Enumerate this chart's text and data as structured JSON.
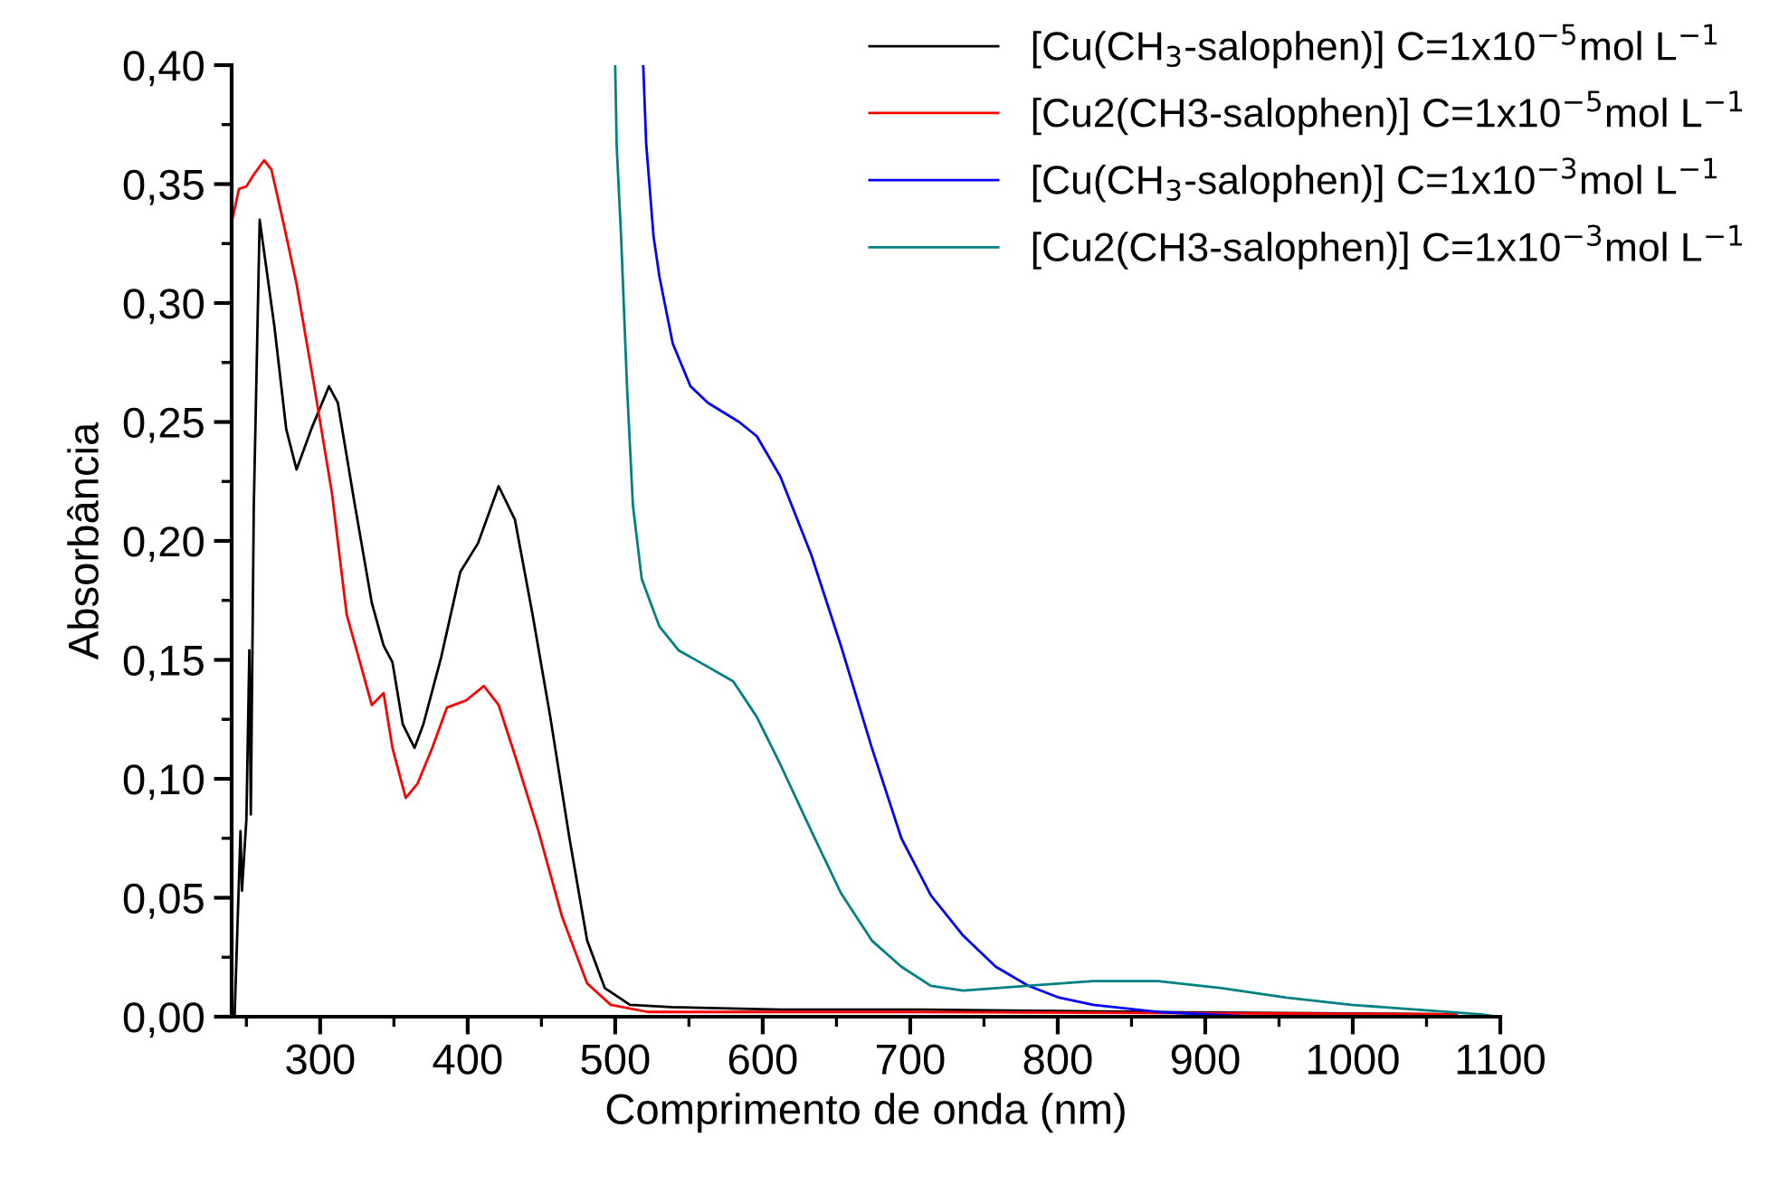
{
  "chart_data": {
    "type": "line",
    "xlabel": "Comprimento de onda (nm)",
    "ylabel": "Absorbância",
    "xlim": [
      240,
      1100
    ],
    "xticks": [
      300,
      400,
      500,
      600,
      700,
      800,
      900,
      1000,
      1100
    ],
    "ylim": [
      0,
      0.4
    ],
    "yticks": [
      {
        "value": 0,
        "label": "0,00"
      },
      {
        "value": 0.05,
        "label": "0,05"
      },
      {
        "value": 0.1,
        "label": "0,10"
      },
      {
        "value": 0.15,
        "label": "0,15"
      },
      {
        "value": 0.2,
        "label": "0,20"
      },
      {
        "value": 0.25,
        "label": "0,25"
      },
      {
        "value": 0.3,
        "label": "0,30"
      },
      {
        "value": 0.35,
        "label": "0,35"
      },
      {
        "value": 0.4,
        "label": "0,40"
      }
    ],
    "grid": false,
    "legend": "top right",
    "marker": "none",
    "line_style": "solid",
    "series": [
      {
        "name": "[Cu(CH$_{3}$-salophen)] C=1x10$^{−5}$mol L$^{−1}$",
        "color": "#000000",
        "x": [
          242,
          246,
          247,
          250,
          252,
          253,
          255,
          259,
          269,
          277,
          284,
          294,
          306,
          312,
          323,
          335,
          343,
          349,
          356,
          364,
          370,
          382,
          395,
          407,
          421,
          432,
          444,
          456,
          469,
          481,
          493,
          510,
          538,
          612,
          700,
          860,
          1070
        ],
        "values": [
          0.0,
          0.078,
          0.053,
          0.083,
          0.154,
          0.085,
          0.214,
          0.335,
          0.29,
          0.247,
          0.23,
          0.247,
          0.265,
          0.258,
          0.217,
          0.174,
          0.156,
          0.149,
          0.123,
          0.113,
          0.123,
          0.151,
          0.187,
          0.199,
          0.223,
          0.209,
          0.169,
          0.126,
          0.075,
          0.032,
          0.012,
          0.005,
          0.004,
          0.003,
          0.003,
          0.002,
          0.001
        ]
      },
      {
        "name": "[Cu2(CH3-salophen)] C=1x10$^{−5}$mol L$^{−1}$",
        "color": "#ff0000",
        "x": [
          240,
          245,
          250,
          255,
          262,
          267,
          275,
          284,
          296,
          308,
          318,
          327,
          335,
          343,
          349,
          358,
          366,
          376,
          386,
          399,
          411,
          421,
          432,
          448,
          464,
          481,
          497,
          522,
          700,
          1070
        ],
        "values": [
          0.334,
          0.348,
          0.349,
          0.354,
          0.36,
          0.356,
          0.334,
          0.308,
          0.265,
          0.22,
          0.169,
          0.149,
          0.131,
          0.136,
          0.113,
          0.092,
          0.098,
          0.113,
          0.13,
          0.133,
          0.139,
          0.131,
          0.11,
          0.078,
          0.042,
          0.014,
          0.005,
          0.002,
          0.002,
          0.001
        ]
      },
      {
        "name": "[Cu(CH$_{3}$-salophen)] C=1x10$^{−3}$mol L$^{−1}$",
        "color": "#0000ff",
        "x": [
          519,
          521,
          526,
          530,
          539,
          551,
          563,
          584,
          596,
          612,
          633,
          653,
          674,
          694,
          714,
          736,
          758,
          780,
          801,
          824,
          868,
          933,
          1090
        ],
        "values": [
          0.4,
          0.367,
          0.328,
          0.311,
          0.283,
          0.265,
          0.258,
          0.25,
          0.244,
          0.227,
          0.194,
          0.156,
          0.113,
          0.075,
          0.051,
          0.034,
          0.021,
          0.013,
          0.008,
          0.005,
          0.002,
          0.0,
          0.0
        ]
      },
      {
        "name": "[Cu2(CH3-salophen)] C=1x10$^{−3}$mol L$^{−1}$",
        "color": "#008080",
        "x": [
          500,
          501,
          504,
          508,
          512,
          518,
          530,
          543,
          563,
          580,
          596,
          612,
          633,
          653,
          674,
          694,
          714,
          736,
          779,
          824,
          868,
          911,
          955,
          999,
          1043,
          1087,
          1098
        ],
        "values": [
          0.4,
          0.366,
          0.328,
          0.265,
          0.215,
          0.184,
          0.164,
          0.154,
          0.147,
          0.141,
          0.126,
          0.106,
          0.078,
          0.052,
          0.032,
          0.021,
          0.013,
          0.011,
          0.013,
          0.015,
          0.015,
          0.012,
          0.008,
          0.005,
          0.003,
          0.001,
          0.0
        ]
      }
    ]
  }
}
